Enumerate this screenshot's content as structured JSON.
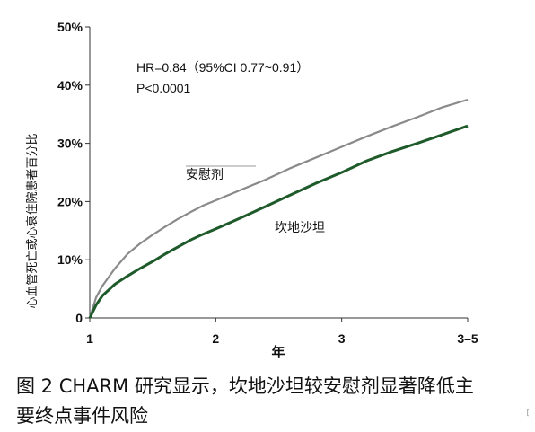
{
  "chart_data": {
    "type": "line",
    "ylabel": "心血管死亡或心衰住院患者百分比",
    "xlabel": "年",
    "x_ticks": [
      "1",
      "2",
      "3",
      "3–5"
    ],
    "y_ticks": [
      "0",
      "10%",
      "20%",
      "30%",
      "40%",
      "50%"
    ],
    "ylim": [
      0,
      50
    ],
    "xlim": [
      1,
      4
    ],
    "annotation": {
      "hr": "HR=0.84（95%CI 0.77~0.91）",
      "p": "P<0.0001"
    },
    "series": [
      {
        "name": "安慰剂",
        "color": "#8a8a8a",
        "x": [
          1.0,
          1.05,
          1.1,
          1.2,
          1.3,
          1.4,
          1.5,
          1.6,
          1.7,
          1.8,
          1.9,
          2.0,
          2.2,
          2.4,
          2.6,
          2.8,
          3.0,
          3.2,
          3.4,
          3.6,
          3.8,
          4.0
        ],
        "y": [
          0,
          3.5,
          5.5,
          8.5,
          11.0,
          12.8,
          14.3,
          15.7,
          17.0,
          18.2,
          19.3,
          20.2,
          22.0,
          23.8,
          25.8,
          27.6,
          29.4,
          31.2,
          32.9,
          34.5,
          36.2,
          37.5
        ]
      },
      {
        "name": "坎地沙坦",
        "color": "#1e5a2a",
        "x": [
          1.0,
          1.05,
          1.1,
          1.2,
          1.3,
          1.4,
          1.5,
          1.6,
          1.7,
          1.8,
          1.9,
          2.0,
          2.2,
          2.4,
          2.6,
          2.8,
          3.0,
          3.2,
          3.4,
          3.6,
          3.8,
          4.0
        ],
        "y": [
          0,
          2.2,
          3.8,
          5.8,
          7.2,
          8.5,
          9.7,
          11.0,
          12.2,
          13.4,
          14.4,
          15.3,
          17.2,
          19.2,
          21.2,
          23.2,
          25.0,
          27.0,
          28.6,
          30.0,
          31.5,
          33.0
        ]
      }
    ]
  },
  "caption": {
    "line1": "图 2  CHARM 研究显示，坎地沙坦较安慰剂显著降低主",
    "line2": "要终点事件风险"
  },
  "corner_mark": "["
}
